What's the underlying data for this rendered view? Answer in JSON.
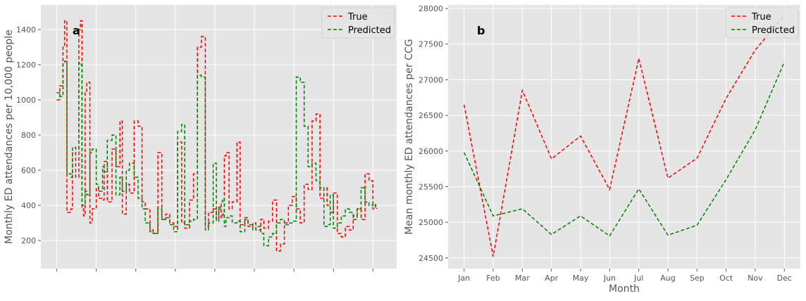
{
  "chart_data": [
    {
      "type": "line",
      "panel_label": "a",
      "title": "",
      "xlabel": "",
      "ylabel": "Monthly ED attendances per 10,000 people",
      "ylim": [
        40,
        1540
      ],
      "yticks": [
        200,
        400,
        600,
        800,
        1000,
        1200,
        1400
      ],
      "xlim": [
        -0.2,
        4.3
      ],
      "xticks": [
        0,
        0.5,
        1,
        1.5,
        2,
        2.5,
        3,
        3.5,
        4
      ],
      "grid": true,
      "legend": "top-right",
      "series": [
        {
          "name": "True",
          "color": "#ff0000",
          "style": "dashed",
          "x": [
            0,
            0.04,
            0.08,
            0.1,
            0.13,
            0.18,
            0.2,
            0.24,
            0.28,
            0.3,
            0.32,
            0.34,
            0.36,
            0.38,
            0.42,
            0.45,
            0.5,
            0.53,
            0.58,
            0.6,
            0.64,
            0.7,
            0.75,
            0.8,
            0.83,
            0.88,
            0.92,
            0.98,
            1.03,
            1.08,
            1.12,
            1.18,
            1.22,
            1.28,
            1.33,
            1.38,
            1.43,
            1.48,
            1.53,
            1.58,
            1.62,
            1.68,
            1.73,
            1.78,
            1.83,
            1.88,
            1.92,
            1.98,
            2.02,
            2.05,
            2.08,
            2.1,
            2.12,
            2.14,
            2.18,
            2.22,
            2.28,
            2.32,
            2.38,
            2.42,
            2.48,
            2.52,
            2.58,
            2.62,
            2.68,
            2.73,
            2.78,
            2.83,
            2.88,
            2.93,
            2.98,
            3.03,
            3.08,
            3.13,
            3.18,
            3.23,
            3.28,
            3.33,
            3.38,
            3.42,
            3.46,
            3.5,
            3.55,
            3.6,
            3.65,
            3.7,
            3.75,
            3.8,
            3.85,
            3.9,
            3.95,
            4.0,
            4.03,
            4.05
          ],
          "y": [
            1000,
            1080,
            1300,
            1450,
            360,
            380,
            700,
            560,
            1400,
            1450,
            380,
            340,
            1050,
            1100,
            300,
            380,
            500,
            440,
            430,
            650,
            420,
            720,
            620,
            880,
            350,
            520,
            470,
            880,
            850,
            420,
            380,
            260,
            240,
            700,
            320,
            350,
            300,
            280,
            760,
            300,
            270,
            430,
            580,
            1300,
            1360,
            280,
            360,
            380,
            320,
            390,
            330,
            350,
            680,
            700,
            380,
            420,
            760,
            290,
            330,
            280,
            300,
            260,
            320,
            270,
            310,
            430,
            140,
            180,
            300,
            400,
            450,
            380,
            300,
            520,
            490,
            880,
            920,
            440,
            500,
            400,
            360,
            470,
            240,
            220,
            280,
            260,
            340,
            380,
            320,
            580,
            540,
            380,
            400,
            390
          ]
        },
        {
          "name": "Predicted",
          "color": "#008000",
          "style": "dashed",
          "x": [
            0,
            0.04,
            0.08,
            0.1,
            0.13,
            0.18,
            0.2,
            0.24,
            0.28,
            0.3,
            0.32,
            0.34,
            0.36,
            0.38,
            0.42,
            0.45,
            0.5,
            0.53,
            0.58,
            0.6,
            0.64,
            0.7,
            0.75,
            0.8,
            0.83,
            0.88,
            0.92,
            0.98,
            1.03,
            1.08,
            1.12,
            1.18,
            1.22,
            1.28,
            1.33,
            1.38,
            1.43,
            1.48,
            1.53,
            1.58,
            1.62,
            1.68,
            1.73,
            1.78,
            1.83,
            1.88,
            1.92,
            1.98,
            2.02,
            2.05,
            2.08,
            2.1,
            2.12,
            2.14,
            2.18,
            2.22,
            2.28,
            2.32,
            2.38,
            2.42,
            2.48,
            2.52,
            2.58,
            2.62,
            2.68,
            2.73,
            2.78,
            2.83,
            2.88,
            2.93,
            2.98,
            3.03,
            3.08,
            3.13,
            3.18,
            3.23,
            3.28,
            3.33,
            3.38,
            3.42,
            3.46,
            3.5,
            3.55,
            3.6,
            3.65,
            3.7,
            3.75,
            3.8,
            3.85,
            3.9,
            3.95,
            4.0,
            4.03,
            4.05
          ],
          "y": [
            1040,
            1020,
            1210,
            1220,
            580,
            560,
            730,
            720,
            1210,
            1200,
            400,
            410,
            480,
            460,
            700,
            720,
            520,
            480,
            620,
            590,
            770,
            800,
            460,
            560,
            480,
            600,
            640,
            560,
            440,
            380,
            300,
            250,
            240,
            380,
            320,
            330,
            290,
            250,
            820,
            860,
            290,
            310,
            320,
            1140,
            1130,
            260,
            300,
            640,
            310,
            380,
            420,
            440,
            280,
            330,
            340,
            300,
            310,
            250,
            320,
            290,
            260,
            280,
            240,
            170,
            220,
            240,
            300,
            320,
            290,
            300,
            310,
            1130,
            1100,
            850,
            620,
            640,
            540,
            500,
            280,
            290,
            460,
            270,
            300,
            340,
            380,
            360,
            320,
            380,
            500,
            420,
            400,
            410,
            390,
            380
          ]
        }
      ]
    },
    {
      "type": "line",
      "panel_label": "b",
      "title": "",
      "xlabel": "Month",
      "ylabel": "Mean monthly ED attendances per CCG",
      "categories": [
        "Jan",
        "Feb",
        "Mar",
        "Apr",
        "May",
        "Jun",
        "Jul",
        "Aug",
        "Sep",
        "Oct",
        "Nov",
        "Dec"
      ],
      "ylim": [
        24350,
        28050
      ],
      "yticks": [
        24500,
        25000,
        25500,
        26000,
        26500,
        27000,
        27500,
        28000
      ],
      "grid": true,
      "legend": "top-right",
      "series": [
        {
          "name": "True",
          "color": "#ff0000",
          "style": "dashed",
          "values": [
            26650,
            24520,
            26850,
            25890,
            26210,
            25460,
            27300,
            25620,
            25900,
            26740,
            27420,
            27900
          ]
        },
        {
          "name": "Predicted",
          "color": "#008000",
          "style": "dashed",
          "values": [
            25980,
            25090,
            25190,
            24830,
            25090,
            24810,
            25470,
            24820,
            24960,
            25600,
            26300,
            27250
          ]
        }
      ]
    }
  ]
}
